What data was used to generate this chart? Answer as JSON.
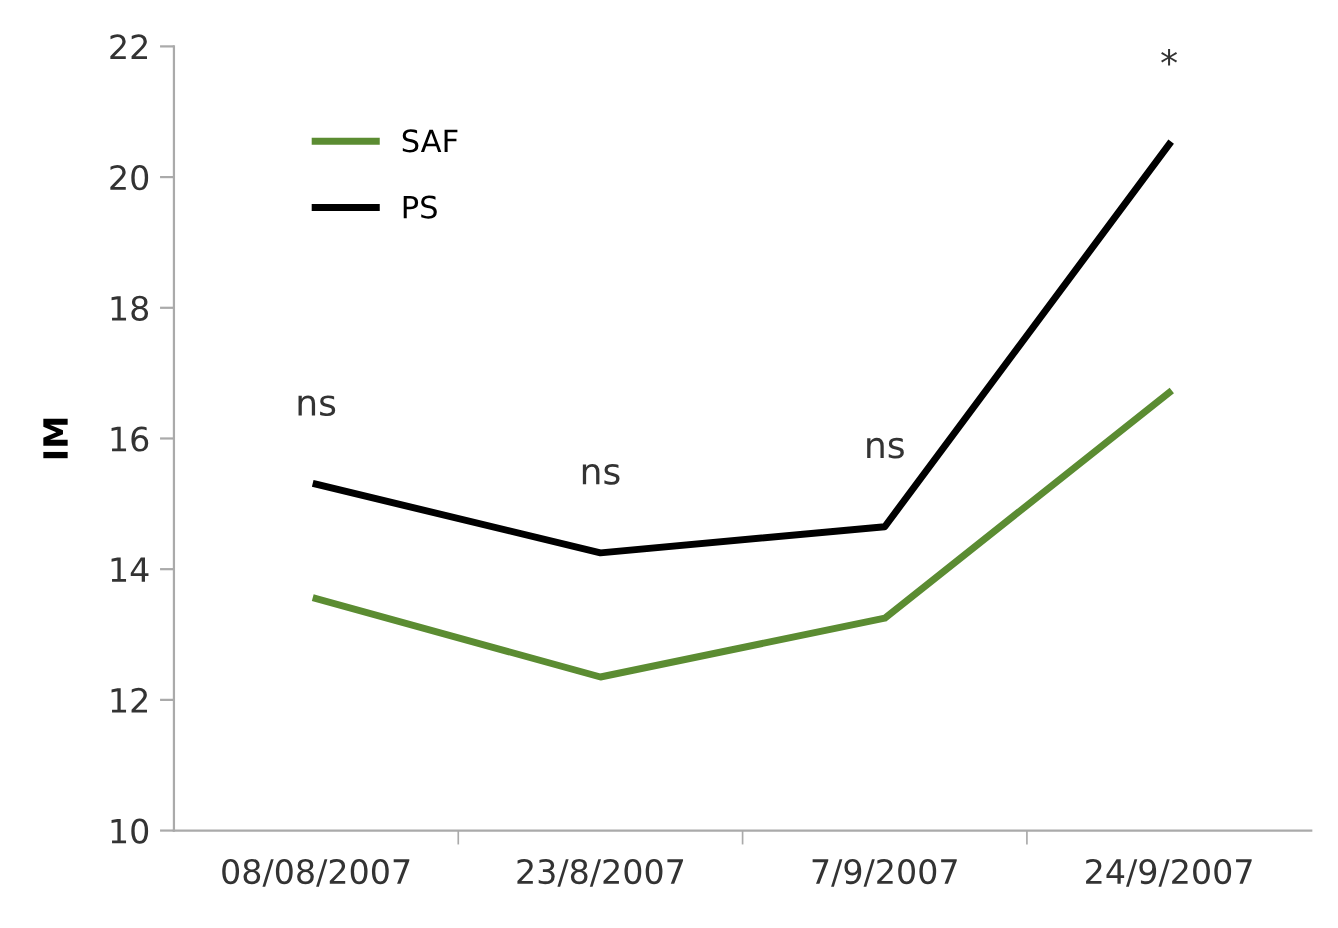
{
  "chart_data": {
    "type": "line",
    "ylabel": "IM",
    "categories": [
      "08/08/2007",
      "23/8/2007",
      "7/9/2007",
      "24/9/2007"
    ],
    "series": [
      {
        "name": "SAF",
        "color": "#5b8c32",
        "values": [
          13.55,
          12.35,
          13.25,
          16.7
        ]
      },
      {
        "name": "PS",
        "color": "#000000",
        "values": [
          15.3,
          14.25,
          14.65,
          20.5
        ]
      }
    ],
    "ylim": [
      10,
      22
    ],
    "yticks": [
      10,
      12,
      14,
      16,
      18,
      20,
      22
    ],
    "grid": false,
    "legend": "top left",
    "marker": "none",
    "line_style": "solid",
    "annotations": [
      {
        "text": "ns",
        "x": "08/08/2007",
        "y": 15.3
      },
      {
        "text": "ns",
        "x": "23/8/2007",
        "y": 14.25
      },
      {
        "text": "ns",
        "x": "7/9/2007",
        "y": 14.65
      },
      {
        "text": "*",
        "x": "24/9/2007",
        "y": 20.5
      }
    ]
  }
}
